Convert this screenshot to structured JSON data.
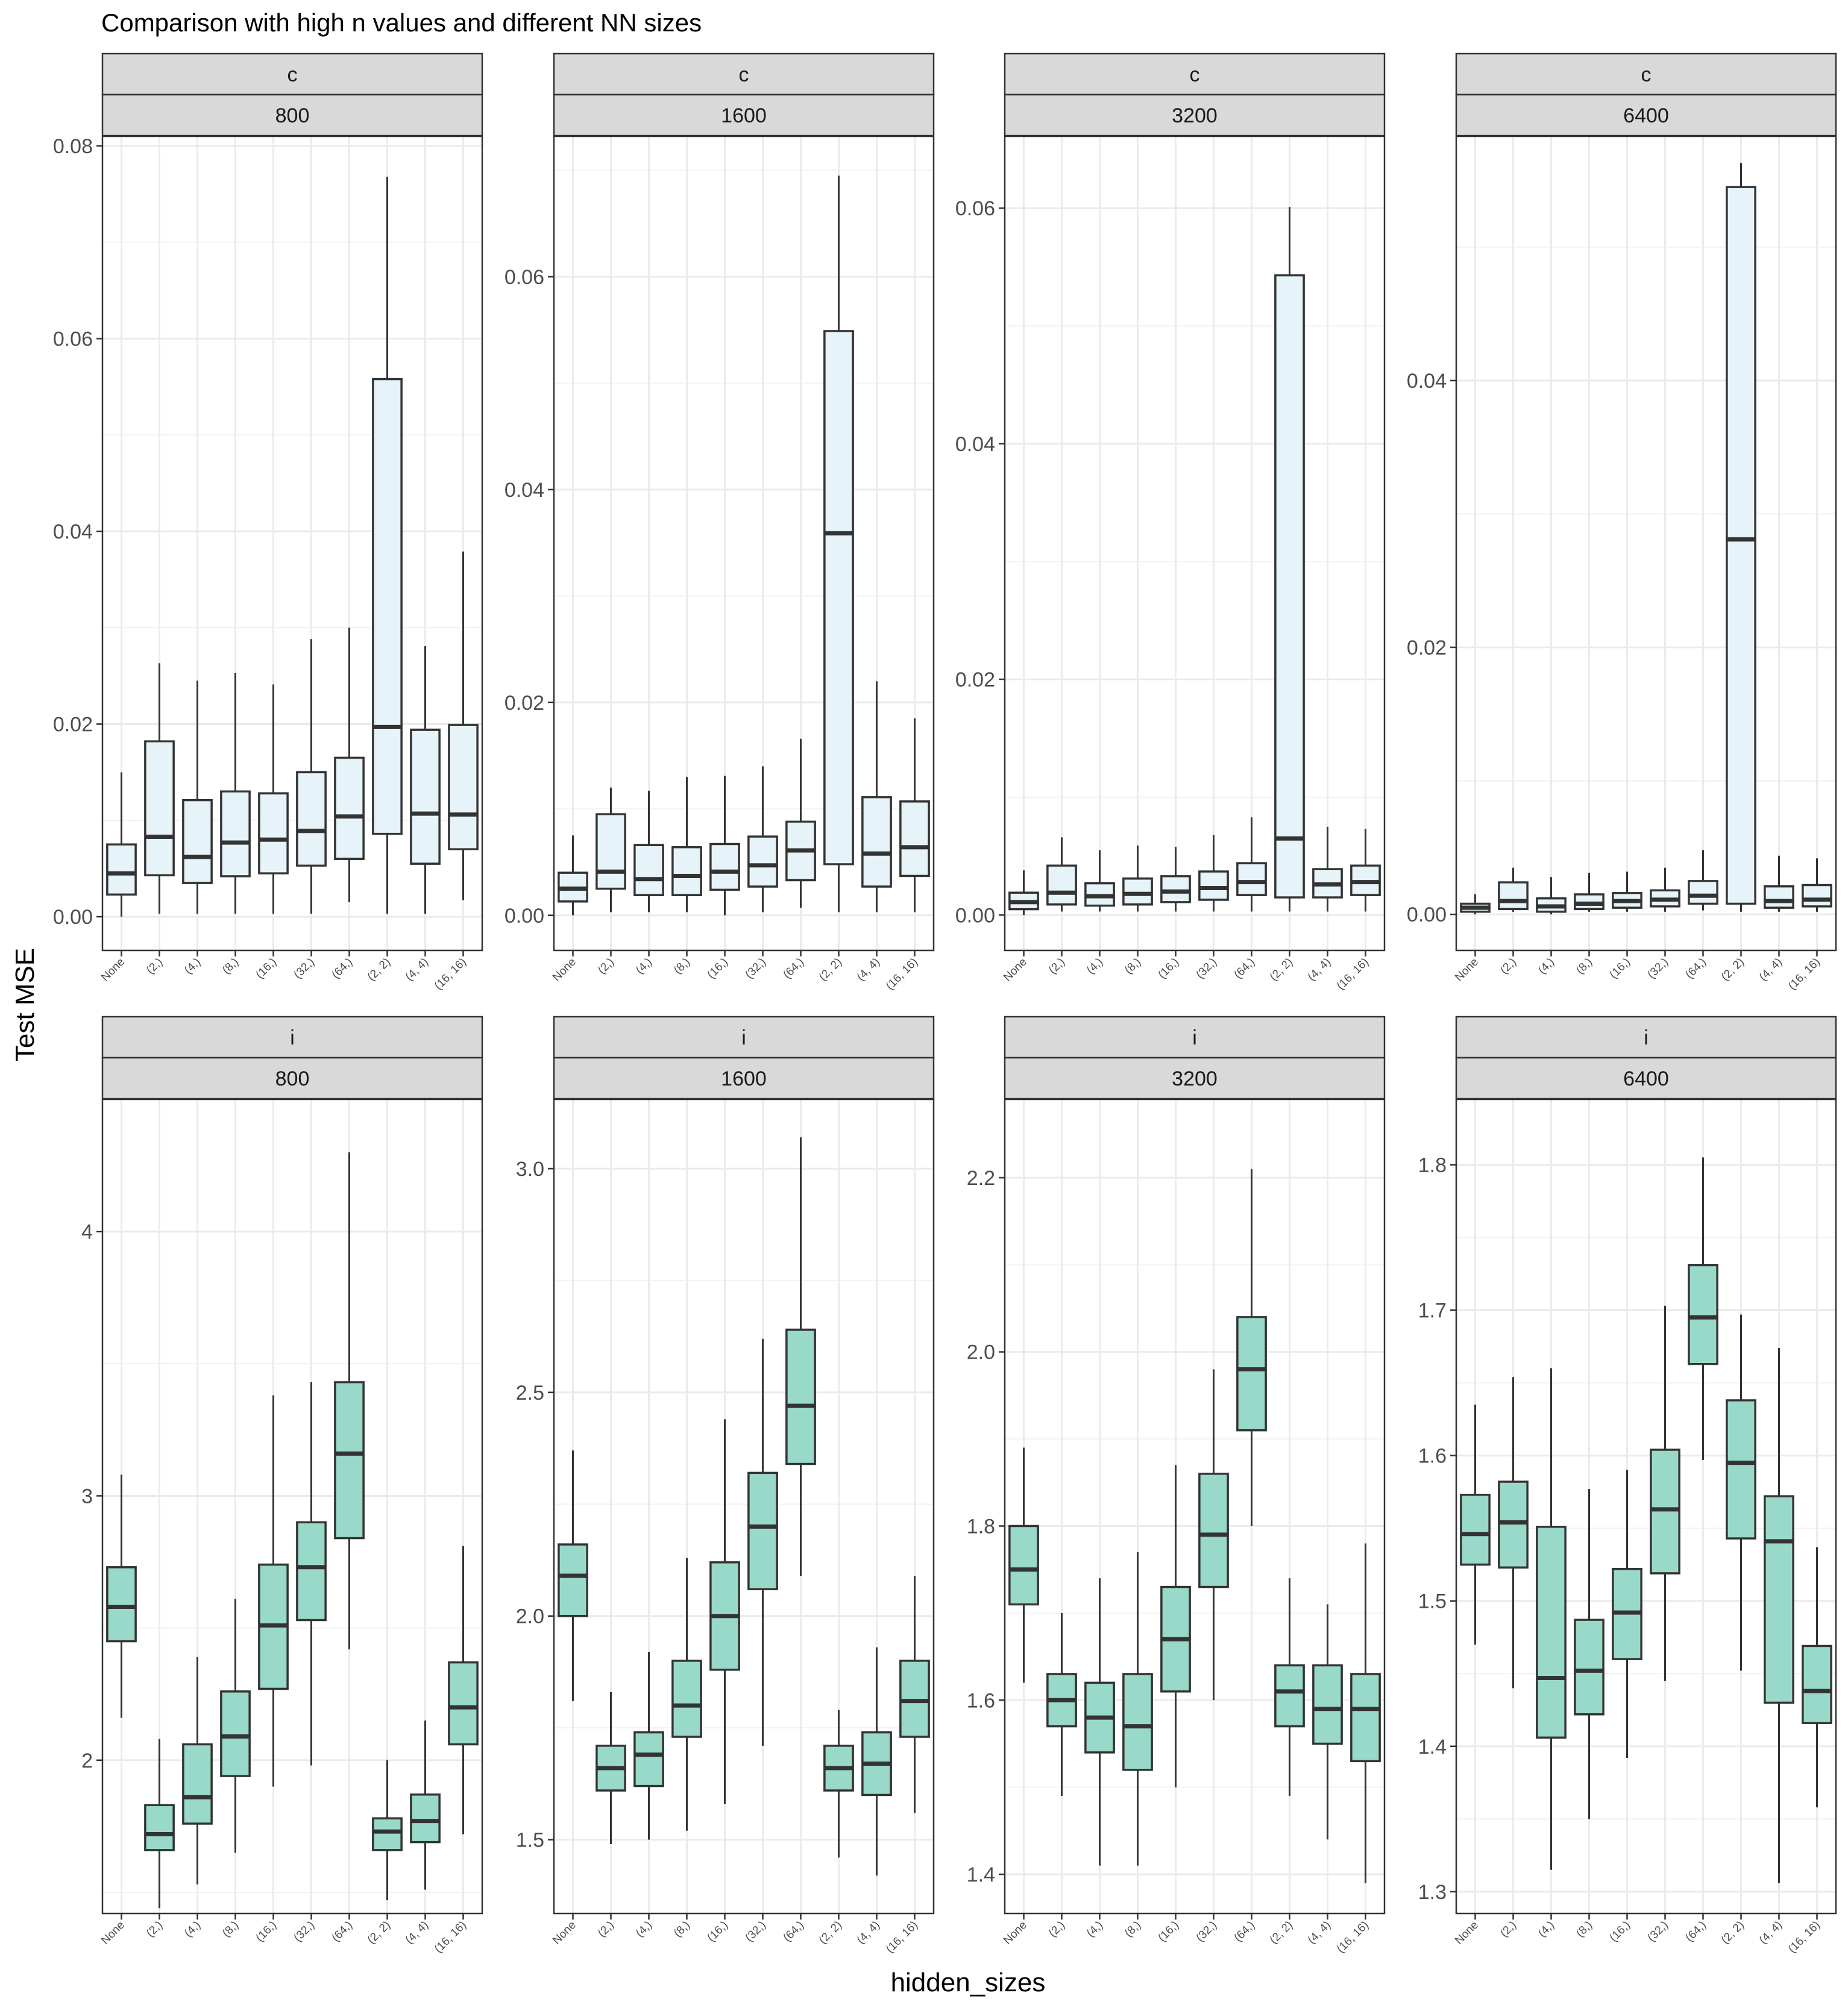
{
  "title": "Comparison with high n values and different NN sizes",
  "xlabel": "hidden_sizes",
  "ylabel": "Test MSE",
  "colors": {
    "c": "#e6f4fa",
    "i": "#99d9c9",
    "stroke": "#333333",
    "strip": "#d9d9d9",
    "grid": "#ebebeb"
  },
  "categories": [
    "None",
    "(2,)",
    "(4,)",
    "(8,)",
    "(16,)",
    "(32,)",
    "(64,)",
    "(2, 2)",
    "(4, 4)",
    "(16, 16)"
  ],
  "chart_data": [
    {
      "type": "box",
      "strip_top": "c",
      "strip_bottom": "800",
      "ylim": [
        -0.0035,
        0.081
      ],
      "ticks": [
        0,
        0.02,
        0.04,
        0.06,
        0.08
      ],
      "tick_labels": [
        "0.00",
        "0.02",
        "0.04",
        "0.06",
        "0.08"
      ],
      "boxes": [
        {
          "lo": 0.0,
          "q1": 0.0023,
          "med": 0.0045,
          "q3": 0.0075,
          "hi": 0.015
        },
        {
          "lo": 0.0003,
          "q1": 0.0043,
          "med": 0.0083,
          "q3": 0.0182,
          "hi": 0.0263
        },
        {
          "lo": 0.0003,
          "q1": 0.0035,
          "med": 0.0062,
          "q3": 0.0121,
          "hi": 0.0245
        },
        {
          "lo": 0.0003,
          "q1": 0.0042,
          "med": 0.0077,
          "q3": 0.013,
          "hi": 0.0253
        },
        {
          "lo": 0.0003,
          "q1": 0.0045,
          "med": 0.008,
          "q3": 0.0128,
          "hi": 0.0241
        },
        {
          "lo": 0.0003,
          "q1": 0.0053,
          "med": 0.0089,
          "q3": 0.015,
          "hi": 0.0288
        },
        {
          "lo": 0.0015,
          "q1": 0.006,
          "med": 0.0104,
          "q3": 0.0165,
          "hi": 0.03
        },
        {
          "lo": 0.0003,
          "q1": 0.0086,
          "med": 0.0197,
          "q3": 0.0558,
          "hi": 0.0768
        },
        {
          "lo": 0.0003,
          "q1": 0.0055,
          "med": 0.0107,
          "q3": 0.0194,
          "hi": 0.0281
        },
        {
          "lo": 0.0017,
          "q1": 0.007,
          "med": 0.0106,
          "q3": 0.0199,
          "hi": 0.0379
        }
      ]
    },
    {
      "type": "box",
      "strip_top": "c",
      "strip_bottom": "1600",
      "ylim": [
        -0.0033,
        0.0732
      ],
      "ticks": [
        0,
        0.02,
        0.04,
        0.06
      ],
      "tick_labels": [
        "0.00",
        "0.02",
        "0.04",
        "0.06"
      ],
      "boxes": [
        {
          "lo": 0.0,
          "q1": 0.0013,
          "med": 0.0025,
          "q3": 0.004,
          "hi": 0.0075
        },
        {
          "lo": 0.0003,
          "q1": 0.0025,
          "med": 0.0041,
          "q3": 0.0095,
          "hi": 0.012
        },
        {
          "lo": 0.0003,
          "q1": 0.0019,
          "med": 0.0034,
          "q3": 0.0066,
          "hi": 0.0117
        },
        {
          "lo": 0.0003,
          "q1": 0.0019,
          "med": 0.0037,
          "q3": 0.0064,
          "hi": 0.013
        },
        {
          "lo": 0.0,
          "q1": 0.0024,
          "med": 0.0041,
          "q3": 0.0067,
          "hi": 0.0131
        },
        {
          "lo": 0.0003,
          "q1": 0.0027,
          "med": 0.0047,
          "q3": 0.0074,
          "hi": 0.014
        },
        {
          "lo": 0.0007,
          "q1": 0.0033,
          "med": 0.0061,
          "q3": 0.0088,
          "hi": 0.0166
        },
        {
          "lo": 0.0003,
          "q1": 0.0048,
          "med": 0.0359,
          "q3": 0.0549,
          "hi": 0.0695
        },
        {
          "lo": 0.0003,
          "q1": 0.0027,
          "med": 0.0058,
          "q3": 0.0111,
          "hi": 0.022
        },
        {
          "lo": 0.0003,
          "q1": 0.0037,
          "med": 0.0064,
          "q3": 0.0107,
          "hi": 0.0185
        }
      ]
    },
    {
      "type": "box",
      "strip_top": "c",
      "strip_bottom": "3200",
      "ylim": [
        -0.003,
        0.0661
      ],
      "ticks": [
        0,
        0.02,
        0.04,
        0.06
      ],
      "tick_labels": [
        "0.00",
        "0.02",
        "0.04",
        "0.06"
      ],
      "boxes": [
        {
          "lo": 0.0,
          "q1": 0.0005,
          "med": 0.0011,
          "q3": 0.0019,
          "hi": 0.0038
        },
        {
          "lo": 0.0003,
          "q1": 0.0009,
          "med": 0.0019,
          "q3": 0.0042,
          "hi": 0.0066
        },
        {
          "lo": 0.0003,
          "q1": 0.0008,
          "med": 0.0016,
          "q3": 0.0027,
          "hi": 0.0055
        },
        {
          "lo": 0.0003,
          "q1": 0.0009,
          "med": 0.0018,
          "q3": 0.0031,
          "hi": 0.0059
        },
        {
          "lo": 0.0003,
          "q1": 0.0011,
          "med": 0.002,
          "q3": 0.0033,
          "hi": 0.0058
        },
        {
          "lo": 0.0003,
          "q1": 0.0013,
          "med": 0.0023,
          "q3": 0.0037,
          "hi": 0.0068
        },
        {
          "lo": 0.0003,
          "q1": 0.0017,
          "med": 0.0028,
          "q3": 0.0044,
          "hi": 0.0083
        },
        {
          "lo": 0.0003,
          "q1": 0.0015,
          "med": 0.0065,
          "q3": 0.0543,
          "hi": 0.0601
        },
        {
          "lo": 0.0003,
          "q1": 0.0015,
          "med": 0.0026,
          "q3": 0.0039,
          "hi": 0.0075
        },
        {
          "lo": 0.0003,
          "q1": 0.0017,
          "med": 0.0028,
          "q3": 0.0042,
          "hi": 0.0073
        }
      ]
    },
    {
      "type": "box",
      "strip_top": "c",
      "strip_bottom": "6400",
      "ylim": [
        -0.0027,
        0.0583
      ],
      "ticks": [
        0,
        0.02,
        0.04
      ],
      "tick_labels": [
        "0.00",
        "0.02",
        "0.04"
      ],
      "boxes": [
        {
          "lo": 0.0,
          "q1": 0.0002,
          "med": 0.0005,
          "q3": 0.0008,
          "hi": 0.0015
        },
        {
          "lo": 0.0002,
          "q1": 0.0004,
          "med": 0.001,
          "q3": 0.0024,
          "hi": 0.0035
        },
        {
          "lo": 0.0,
          "q1": 0.0002,
          "med": 0.0006,
          "q3": 0.0012,
          "hi": 0.0028
        },
        {
          "lo": 0.0002,
          "q1": 0.0004,
          "med": 0.0008,
          "q3": 0.0015,
          "hi": 0.0031
        },
        {
          "lo": 0.0002,
          "q1": 0.0005,
          "med": 0.001,
          "q3": 0.0016,
          "hi": 0.0032
        },
        {
          "lo": 0.0002,
          "q1": 0.0006,
          "med": 0.0011,
          "q3": 0.0018,
          "hi": 0.0035
        },
        {
          "lo": 0.0003,
          "q1": 0.0008,
          "med": 0.0014,
          "q3": 0.0025,
          "hi": 0.0048
        },
        {
          "lo": 0.0002,
          "q1": 0.0008,
          "med": 0.0281,
          "q3": 0.0545,
          "hi": 0.0563
        },
        {
          "lo": 0.0002,
          "q1": 0.0005,
          "med": 0.001,
          "q3": 0.0021,
          "hi": 0.0044
        },
        {
          "lo": 0.0002,
          "q1": 0.0006,
          "med": 0.0011,
          "q3": 0.0022,
          "hi": 0.0042
        }
      ]
    },
    {
      "type": "box",
      "strip_top": "i",
      "strip_bottom": "800",
      "ylim": [
        1.42,
        4.5
      ],
      "ticks": [
        2,
        3,
        4
      ],
      "tick_labels": [
        "2",
        "3",
        "4"
      ],
      "boxes": [
        {
          "lo": 2.16,
          "q1": 2.45,
          "med": 2.58,
          "q3": 2.73,
          "hi": 3.08
        },
        {
          "lo": 1.44,
          "q1": 1.66,
          "med": 1.72,
          "q3": 1.83,
          "hi": 2.08
        },
        {
          "lo": 1.53,
          "q1": 1.76,
          "med": 1.86,
          "q3": 2.06,
          "hi": 2.39
        },
        {
          "lo": 1.65,
          "q1": 1.94,
          "med": 2.09,
          "q3": 2.26,
          "hi": 2.61
        },
        {
          "lo": 1.9,
          "q1": 2.27,
          "med": 2.51,
          "q3": 2.74,
          "hi": 3.38
        },
        {
          "lo": 1.98,
          "q1": 2.53,
          "med": 2.73,
          "q3": 2.9,
          "hi": 3.43
        },
        {
          "lo": 2.42,
          "q1": 2.84,
          "med": 3.16,
          "q3": 3.43,
          "hi": 4.3
        },
        {
          "lo": 1.47,
          "q1": 1.66,
          "med": 1.73,
          "q3": 1.78,
          "hi": 2.0
        },
        {
          "lo": 1.51,
          "q1": 1.69,
          "med": 1.77,
          "q3": 1.87,
          "hi": 2.15
        },
        {
          "lo": 1.72,
          "q1": 2.06,
          "med": 2.2,
          "q3": 2.37,
          "hi": 2.81
        }
      ]
    },
    {
      "type": "box",
      "strip_top": "i",
      "strip_bottom": "1600",
      "ylim": [
        1.335,
        3.155
      ],
      "ticks": [
        1.5,
        2.0,
        2.5,
        3.0
      ],
      "tick_labels": [
        "1.5",
        "2.0",
        "2.5",
        "3.0"
      ],
      "boxes": [
        {
          "lo": 1.81,
          "q1": 2.0,
          "med": 2.09,
          "q3": 2.16,
          "hi": 2.37
        },
        {
          "lo": 1.49,
          "q1": 1.61,
          "med": 1.66,
          "q3": 1.71,
          "hi": 1.83
        },
        {
          "lo": 1.5,
          "q1": 1.62,
          "med": 1.69,
          "q3": 1.74,
          "hi": 1.92
        },
        {
          "lo": 1.52,
          "q1": 1.73,
          "med": 1.8,
          "q3": 1.9,
          "hi": 2.13
        },
        {
          "lo": 1.58,
          "q1": 1.88,
          "med": 2.0,
          "q3": 2.12,
          "hi": 2.44
        },
        {
          "lo": 1.71,
          "q1": 2.06,
          "med": 2.2,
          "q3": 2.32,
          "hi": 2.62
        },
        {
          "lo": 2.09,
          "q1": 2.34,
          "med": 2.47,
          "q3": 2.64,
          "hi": 3.07
        },
        {
          "lo": 1.46,
          "q1": 1.61,
          "med": 1.66,
          "q3": 1.71,
          "hi": 1.79
        },
        {
          "lo": 1.42,
          "q1": 1.6,
          "med": 1.67,
          "q3": 1.74,
          "hi": 1.93
        },
        {
          "lo": 1.56,
          "q1": 1.73,
          "med": 1.81,
          "q3": 1.9,
          "hi": 2.09
        }
      ]
    },
    {
      "type": "box",
      "strip_top": "i",
      "strip_bottom": "3200",
      "ylim": [
        1.355,
        2.29
      ],
      "ticks": [
        1.4,
        1.6,
        1.8,
        2.0,
        2.2
      ],
      "tick_labels": [
        "1.4",
        "1.6",
        "1.8",
        "2.0",
        "2.2"
      ],
      "boxes": [
        {
          "lo": 1.62,
          "q1": 1.71,
          "med": 1.75,
          "q3": 1.8,
          "hi": 1.89
        },
        {
          "lo": 1.49,
          "q1": 1.57,
          "med": 1.6,
          "q3": 1.63,
          "hi": 1.7
        },
        {
          "lo": 1.41,
          "q1": 1.54,
          "med": 1.58,
          "q3": 1.62,
          "hi": 1.74
        },
        {
          "lo": 1.41,
          "q1": 1.52,
          "med": 1.57,
          "q3": 1.63,
          "hi": 1.77
        },
        {
          "lo": 1.5,
          "q1": 1.61,
          "med": 1.67,
          "q3": 1.73,
          "hi": 1.87
        },
        {
          "lo": 1.6,
          "q1": 1.73,
          "med": 1.79,
          "q3": 1.86,
          "hi": 1.98
        },
        {
          "lo": 1.8,
          "q1": 1.91,
          "med": 1.98,
          "q3": 2.04,
          "hi": 2.21
        },
        {
          "lo": 1.49,
          "q1": 1.57,
          "med": 1.61,
          "q3": 1.64,
          "hi": 1.74
        },
        {
          "lo": 1.44,
          "q1": 1.55,
          "med": 1.59,
          "q3": 1.64,
          "hi": 1.71
        },
        {
          "lo": 1.39,
          "q1": 1.53,
          "med": 1.59,
          "q3": 1.63,
          "hi": 1.78
        }
      ]
    },
    {
      "type": "box",
      "strip_top": "i",
      "strip_bottom": "6400",
      "ylim": [
        1.285,
        1.845
      ],
      "ticks": [
        1.3,
        1.4,
        1.5,
        1.6,
        1.7,
        1.8
      ],
      "tick_labels": [
        "1.3",
        "1.4",
        "1.5",
        "1.6",
        "1.7",
        "1.8"
      ],
      "boxes": [
        {
          "lo": 1.47,
          "q1": 1.525,
          "med": 1.546,
          "q3": 1.573,
          "hi": 1.635
        },
        {
          "lo": 1.44,
          "q1": 1.523,
          "med": 1.554,
          "q3": 1.582,
          "hi": 1.654
        },
        {
          "lo": 1.315,
          "q1": 1.406,
          "med": 1.447,
          "q3": 1.551,
          "hi": 1.66
        },
        {
          "lo": 1.35,
          "q1": 1.422,
          "med": 1.452,
          "q3": 1.487,
          "hi": 1.577
        },
        {
          "lo": 1.392,
          "q1": 1.46,
          "med": 1.492,
          "q3": 1.522,
          "hi": 1.59
        },
        {
          "lo": 1.445,
          "q1": 1.519,
          "med": 1.563,
          "q3": 1.604,
          "hi": 1.703
        },
        {
          "lo": 1.597,
          "q1": 1.663,
          "med": 1.695,
          "q3": 1.731,
          "hi": 1.805
        },
        {
          "lo": 1.452,
          "q1": 1.543,
          "med": 1.595,
          "q3": 1.638,
          "hi": 1.697
        },
        {
          "lo": 1.306,
          "q1": 1.43,
          "med": 1.541,
          "q3": 1.572,
          "hi": 1.674
        },
        {
          "lo": 1.358,
          "q1": 1.416,
          "med": 1.438,
          "q3": 1.469,
          "hi": 1.537
        }
      ]
    }
  ]
}
